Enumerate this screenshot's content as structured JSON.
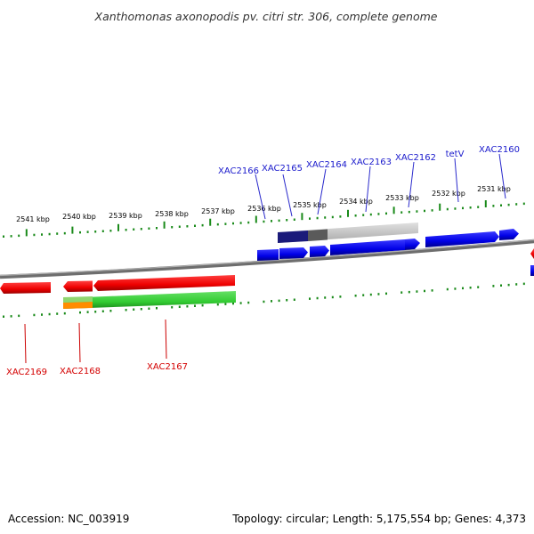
{
  "title": "Xanthomonas axonopodis pv. citri str. 306, complete genome",
  "footer": {
    "accession": "Accession: NC_003919",
    "summary": "Topology: circular; Length: 5,175,554 bp; Genes: 4,373"
  },
  "ticks": [
    "2541 kbp",
    "2540 kbp",
    "2539 kbp",
    "2538 kbp",
    "2537 kbp",
    "2536 kbp",
    "2535 kbp",
    "2534 kbp",
    "2533 kbp",
    "2532 kbp",
    "2531 kbp"
  ],
  "genes_forward": [
    "XAC2166",
    "XAC2165",
    "XAC2164",
    "XAC2163",
    "XAC2162",
    "tetV",
    "XAC2160"
  ],
  "genes_reverse": [
    "XAC2169",
    "XAC2168",
    "XAC2167"
  ],
  "colors": {
    "forward_gene": "#1a1acc",
    "reverse_gene": "#d40000",
    "backbone": "#8a8a8a",
    "tick": "#1a8a1a",
    "highlight_green": "#33cc33",
    "highlight_orange": "#ff8c00",
    "highlight_dark": "#1a1a7a",
    "highlight_gray": "#c0c0c0"
  }
}
